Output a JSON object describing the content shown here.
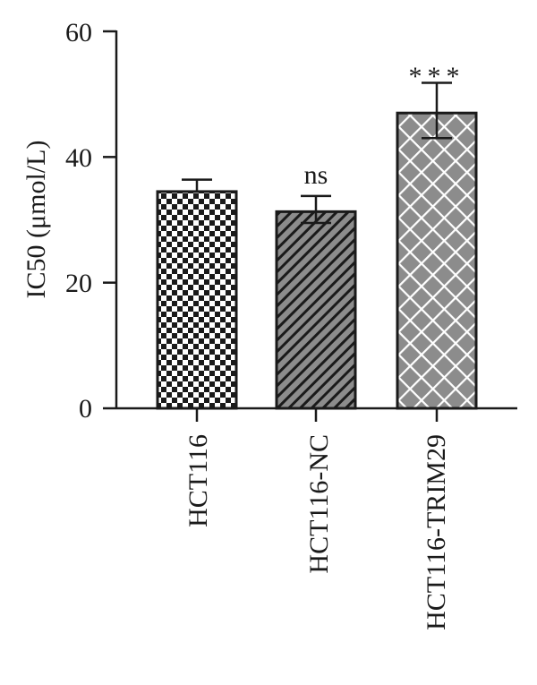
{
  "chart_data": {
    "type": "bar",
    "title": "",
    "xlabel": "",
    "ylabel": "IC50 (μmol/L)",
    "ylim": [
      0,
      60
    ],
    "yticks": [
      0,
      20,
      40,
      60
    ],
    "ytick_labels": [
      "0",
      "20",
      "40",
      "60"
    ],
    "grid": false,
    "legend": "none",
    "categories": [
      "HCT116",
      "HCT116-NC",
      "HCT116-TRIM29"
    ],
    "values": [
      34.5,
      31.3,
      47.0
    ],
    "error_upper": [
      36.4,
      33.8,
      51.8
    ],
    "error_lower": [
      34.5,
      29.5,
      43.0
    ],
    "annotations": [
      "",
      "ns",
      "***"
    ],
    "fill_patterns": [
      "checkerboard",
      "diagonal-hatch",
      "crosshatch"
    ],
    "colors": {
      "dark": "#1a1a1a",
      "gray": "#8c8c8c",
      "white": "#ffffff"
    }
  }
}
